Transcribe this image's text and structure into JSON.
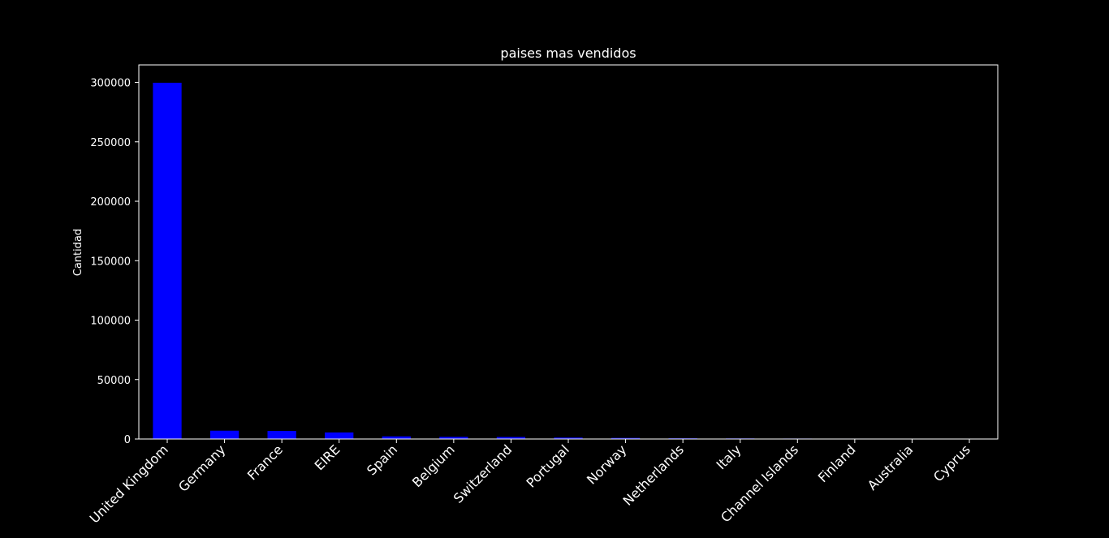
{
  "chart_data": {
    "type": "bar",
    "title": "paises mas vendidos",
    "xlabel": "",
    "ylabel": "Cantidad",
    "categories": [
      "United Kingdom",
      "Germany",
      "France",
      "EIRE",
      "Spain",
      "Belgium",
      "Switzerland",
      "Portugal",
      "Norway",
      "Netherlands",
      "Italy",
      "Channel Islands",
      "Finland",
      "Australia",
      "Cyprus"
    ],
    "values": [
      299700,
      7000,
      6800,
      5500,
      2200,
      1800,
      1700,
      1200,
      900,
      600,
      500,
      400,
      350,
      300,
      250
    ],
    "ylim": [
      0,
      314700
    ],
    "yticks": [
      0,
      50000,
      100000,
      150000,
      200000,
      250000,
      300000
    ],
    "bar_color": "#0000ff",
    "background_color": "#000000",
    "text_color": "#ffffff",
    "grid": false,
    "legend": "none"
  }
}
